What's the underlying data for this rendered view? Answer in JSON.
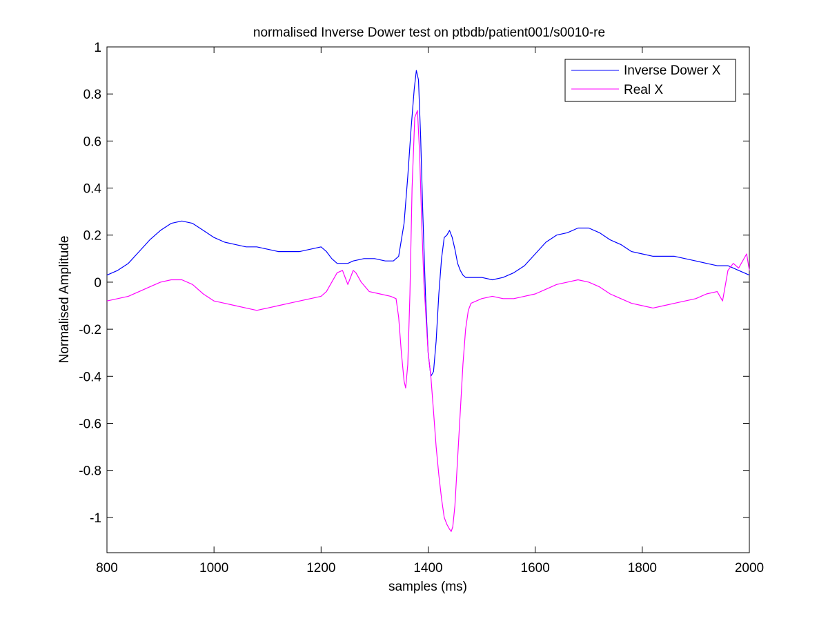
{
  "chart_data": {
    "type": "line",
    "title": "normalised Inverse Dower test on ptbdb/patient001/s0010-re",
    "xlabel": "samples (ms)",
    "ylabel": "Normalised Amplitude",
    "xlim": [
      800,
      2000
    ],
    "ylim": [
      -1.15,
      1.0
    ],
    "xticks": [
      800,
      1000,
      1200,
      1400,
      1600,
      1800,
      2000
    ],
    "xtick_labels": [
      "800",
      "1000",
      "1200",
      "1400",
      "1600",
      "1800",
      "2000"
    ],
    "yticks": [
      1,
      0.8,
      0.6,
      0.4,
      0.2,
      0,
      -0.2,
      -0.4,
      -0.6,
      -0.8,
      -1
    ],
    "ytick_labels": [
      "1",
      "0.8",
      "0.6",
      "0.4",
      "0.2",
      "0",
      "-0.2",
      "-0.4",
      "-0.6",
      "-0.8",
      "-1"
    ],
    "grid": false,
    "legend_position": "top-right",
    "series": [
      {
        "name": "Inverse Dower X",
        "color": "#0000ff",
        "x": [
          800,
          820,
          840,
          860,
          880,
          900,
          920,
          940,
          960,
          980,
          1000,
          1020,
          1040,
          1060,
          1080,
          1100,
          1120,
          1140,
          1160,
          1180,
          1200,
          1210,
          1220,
          1230,
          1240,
          1250,
          1260,
          1280,
          1300,
          1320,
          1335,
          1345,
          1355,
          1362,
          1368,
          1374,
          1378,
          1382,
          1386,
          1390,
          1395,
          1400,
          1405,
          1410,
          1415,
          1420,
          1425,
          1430,
          1435,
          1440,
          1445,
          1450,
          1455,
          1460,
          1465,
          1470,
          1480,
          1500,
          1520,
          1540,
          1560,
          1580,
          1600,
          1620,
          1640,
          1660,
          1680,
          1700,
          1720,
          1740,
          1760,
          1780,
          1800,
          1820,
          1840,
          1860,
          1880,
          1900,
          1920,
          1940,
          1960,
          1980,
          2000
        ],
        "y": [
          0.03,
          0.05,
          0.08,
          0.13,
          0.18,
          0.22,
          0.25,
          0.26,
          0.25,
          0.22,
          0.19,
          0.17,
          0.16,
          0.15,
          0.15,
          0.14,
          0.13,
          0.13,
          0.13,
          0.14,
          0.15,
          0.13,
          0.1,
          0.08,
          0.08,
          0.08,
          0.09,
          0.1,
          0.1,
          0.09,
          0.09,
          0.11,
          0.25,
          0.45,
          0.65,
          0.82,
          0.9,
          0.86,
          0.62,
          0.3,
          -0.05,
          -0.3,
          -0.4,
          -0.38,
          -0.25,
          -0.05,
          0.1,
          0.19,
          0.2,
          0.22,
          0.19,
          0.14,
          0.08,
          0.05,
          0.03,
          0.02,
          0.02,
          0.02,
          0.01,
          0.02,
          0.04,
          0.07,
          0.12,
          0.17,
          0.2,
          0.21,
          0.23,
          0.23,
          0.21,
          0.18,
          0.16,
          0.13,
          0.12,
          0.11,
          0.11,
          0.11,
          0.1,
          0.09,
          0.08,
          0.07,
          0.07,
          0.05,
          0.03
        ]
      },
      {
        "name": "Real X",
        "color": "#ff00ff",
        "x": [
          800,
          820,
          840,
          860,
          880,
          900,
          920,
          940,
          960,
          980,
          1000,
          1020,
          1040,
          1060,
          1080,
          1100,
          1120,
          1140,
          1160,
          1180,
          1200,
          1210,
          1220,
          1230,
          1240,
          1245,
          1250,
          1255,
          1260,
          1265,
          1275,
          1290,
          1310,
          1330,
          1340,
          1345,
          1350,
          1355,
          1358,
          1362,
          1366,
          1370,
          1375,
          1380,
          1384,
          1388,
          1392,
          1396,
          1400,
          1405,
          1410,
          1415,
          1420,
          1425,
          1430,
          1435,
          1440,
          1443,
          1446,
          1450,
          1455,
          1460,
          1465,
          1470,
          1475,
          1480,
          1490,
          1500,
          1520,
          1540,
          1560,
          1580,
          1600,
          1620,
          1640,
          1660,
          1680,
          1700,
          1720,
          1740,
          1760,
          1780,
          1800,
          1820,
          1840,
          1860,
          1880,
          1900,
          1920,
          1940,
          1950,
          1960,
          1970,
          1980,
          1990,
          1995,
          2000
        ],
        "y": [
          -0.08,
          -0.07,
          -0.06,
          -0.04,
          -0.02,
          0.0,
          0.01,
          0.01,
          -0.01,
          -0.05,
          -0.08,
          -0.09,
          -0.1,
          -0.11,
          -0.12,
          -0.11,
          -0.1,
          -0.09,
          -0.08,
          -0.07,
          -0.06,
          -0.04,
          0.0,
          0.04,
          0.05,
          0.02,
          -0.01,
          0.02,
          0.05,
          0.04,
          0.0,
          -0.04,
          -0.05,
          -0.06,
          -0.07,
          -0.15,
          -0.3,
          -0.42,
          -0.45,
          -0.35,
          -0.05,
          0.4,
          0.7,
          0.73,
          0.55,
          0.25,
          0.0,
          -0.15,
          -0.3,
          -0.4,
          -0.55,
          -0.7,
          -0.82,
          -0.92,
          -1.0,
          -1.03,
          -1.05,
          -1.06,
          -1.04,
          -0.95,
          -0.75,
          -0.55,
          -0.35,
          -0.2,
          -0.12,
          -0.09,
          -0.08,
          -0.07,
          -0.06,
          -0.07,
          -0.07,
          -0.06,
          -0.05,
          -0.03,
          -0.01,
          0.0,
          0.01,
          0.0,
          -0.02,
          -0.05,
          -0.07,
          -0.09,
          -0.1,
          -0.11,
          -0.1,
          -0.09,
          -0.08,
          -0.07,
          -0.05,
          -0.04,
          -0.08,
          0.05,
          0.08,
          0.06,
          0.1,
          0.12,
          0.05
        ]
      }
    ]
  }
}
